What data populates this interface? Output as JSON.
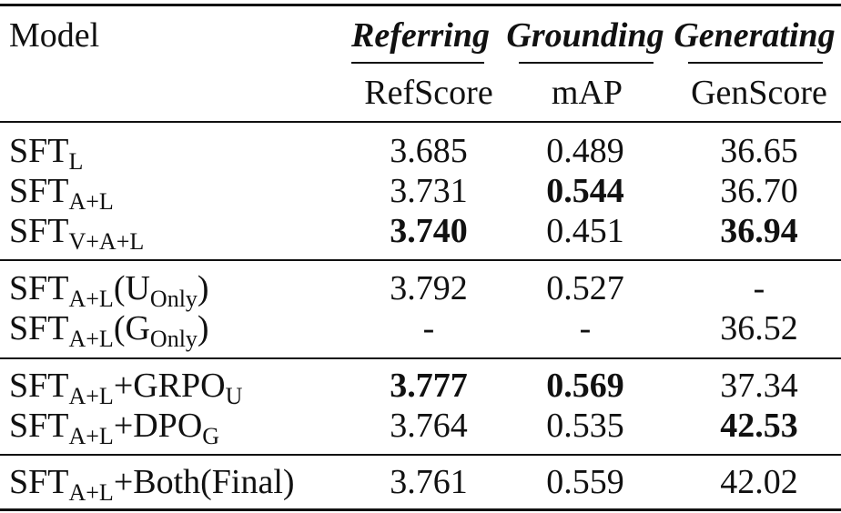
{
  "header": {
    "model_label": "Model",
    "groups": [
      "Referring",
      "Grounding",
      "Generating"
    ],
    "metrics": [
      "RefScore",
      "mAP",
      "GenScore"
    ]
  },
  "rows": [
    {
      "model": {
        "base": "SFT",
        "sub": "L",
        "suffix": "",
        "suffix_sub": "",
        "paren_base": "",
        "paren_sub": ""
      },
      "ref": "3.685",
      "map": "0.489",
      "gen": "36.65"
    },
    {
      "model": {
        "base": "SFT",
        "sub": "A+L",
        "suffix": "",
        "suffix_sub": "",
        "paren_base": "",
        "paren_sub": ""
      },
      "ref": "3.731",
      "map": "0.544",
      "gen": "36.70"
    },
    {
      "model": {
        "base": "SFT",
        "sub": "V+A+L",
        "suffix": "",
        "suffix_sub": "",
        "paren_base": "",
        "paren_sub": ""
      },
      "ref": "3.740",
      "map": "0.451",
      "gen": "36.94"
    },
    {
      "model": {
        "base": "SFT",
        "sub": "A+L",
        "suffix": "",
        "suffix_sub": "",
        "paren_base": "U",
        "paren_sub": "Only"
      },
      "ref": "3.792",
      "map": "0.527",
      "gen": "-"
    },
    {
      "model": {
        "base": "SFT",
        "sub": "A+L",
        "suffix": "",
        "suffix_sub": "",
        "paren_base": "G",
        "paren_sub": "Only"
      },
      "ref": "-",
      "map": "-",
      "gen": "36.52"
    },
    {
      "model": {
        "base": "SFT",
        "sub": "A+L",
        "suffix": "+GRPO",
        "suffix_sub": "U",
        "paren_base": "",
        "paren_sub": ""
      },
      "ref": "3.777",
      "map": "0.569",
      "gen": "37.34"
    },
    {
      "model": {
        "base": "SFT",
        "sub": "A+L",
        "suffix": "+DPO",
        "suffix_sub": "G",
        "paren_base": "",
        "paren_sub": ""
      },
      "ref": "3.764",
      "map": "0.535",
      "gen": "42.53"
    },
    {
      "model": {
        "base": "SFT",
        "sub": "A+L",
        "suffix": "+Both(Final)",
        "suffix_sub": "",
        "paren_base": "",
        "paren_sub": ""
      },
      "ref": "3.761",
      "map": "0.559",
      "gen": "42.02"
    }
  ],
  "bold_cells": [
    {
      "row": 1,
      "col": "map"
    },
    {
      "row": 2,
      "col": "ref"
    },
    {
      "row": 2,
      "col": "gen"
    },
    {
      "row": 5,
      "col": "ref"
    },
    {
      "row": 5,
      "col": "map"
    },
    {
      "row": 6,
      "col": "gen"
    }
  ]
}
